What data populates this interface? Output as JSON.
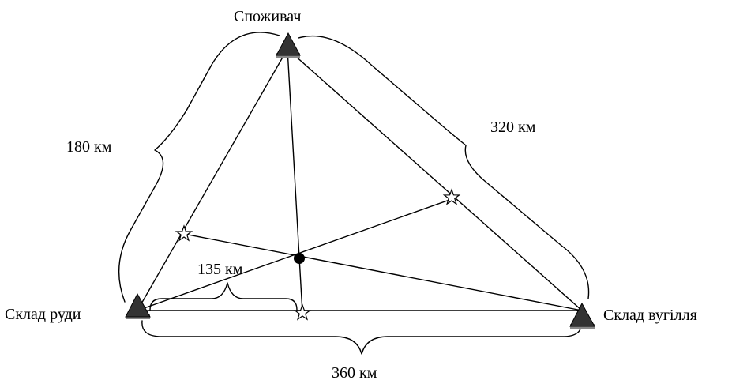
{
  "nodes": {
    "consumer": {
      "label": "Споживач"
    },
    "ore_warehouse": {
      "label": "Склад руди"
    },
    "coal_warehouse": {
      "label": "Склад вугілля"
    }
  },
  "distances": {
    "consumer_ore": "180 км",
    "consumer_coal": "320 км",
    "ore_coal": "360 км",
    "ore_star": "135 км"
  },
  "markers": {
    "triangle_color": "#333333",
    "triangle_shadow": "#888888",
    "star_fill": "#ffffff",
    "center_fill": "#000000"
  }
}
